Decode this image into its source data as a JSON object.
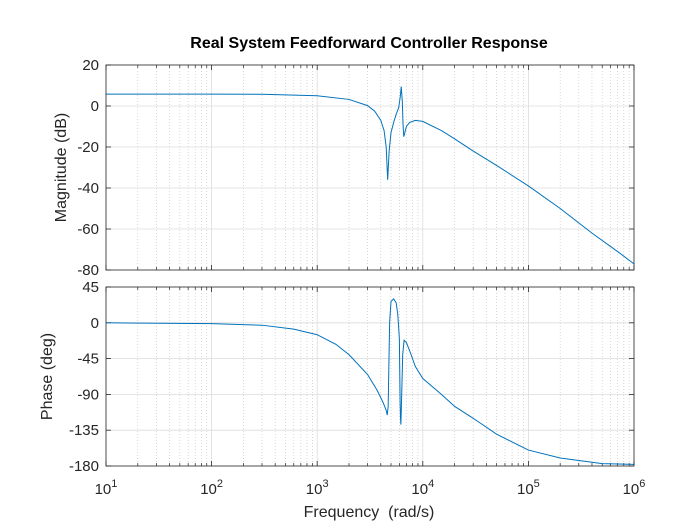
{
  "chart_data": {
    "type": "line",
    "title": "Real System Feedforward Controller Response",
    "xlabel": "Frequency  (rad/s)",
    "x_scale": "log",
    "xlim": [
      10,
      1000000
    ],
    "x_ticks": [
      {
        "value": 10,
        "base": "10",
        "exp": "1"
      },
      {
        "value": 100,
        "base": "10",
        "exp": "2"
      },
      {
        "value": 1000,
        "base": "10",
        "exp": "3"
      },
      {
        "value": 10000,
        "base": "10",
        "exp": "4"
      },
      {
        "value": 100000,
        "base": "10",
        "exp": "5"
      },
      {
        "value": 1000000,
        "base": "10",
        "exp": "6"
      }
    ],
    "grid": true,
    "line_color": "#0072BD",
    "panels": [
      {
        "id": "magnitude",
        "ylabel": "Magnitude (dB)",
        "ylim": [
          -80,
          20
        ],
        "yticks": [
          20,
          0,
          -20,
          -40,
          -60,
          -80
        ],
        "x": [
          10,
          100,
          300,
          1000,
          2000,
          3000,
          3500,
          4000,
          4300,
          4500,
          4650,
          4800,
          5000,
          5300,
          5600,
          5900,
          6100,
          6250,
          6400,
          6500,
          6600,
          7000,
          7500,
          8500,
          10000,
          15000,
          20000,
          30000,
          50000,
          100000,
          200000,
          400000,
          700000,
          1000000
        ],
        "y": [
          5.8,
          5.8,
          5.7,
          5.0,
          3.2,
          0.2,
          -2.5,
          -7.0,
          -12.0,
          -20.0,
          -36.0,
          -22.0,
          -13.0,
          -8.0,
          -4.0,
          -1.0,
          4.0,
          9.5,
          2.0,
          -9.0,
          -15.0,
          -10.0,
          -8.0,
          -7.0,
          -7.5,
          -12.0,
          -16.0,
          -22.0,
          -29.0,
          -39.0,
          -50.0,
          -62.0,
          -71.0,
          -77.0
        ]
      },
      {
        "id": "phase",
        "ylabel": "Phase (deg)",
        "ylim": [
          -180,
          45
        ],
        "yticks": [
          45,
          0,
          -45,
          -90,
          -135,
          -180
        ],
        "x": [
          10,
          100,
          300,
          600,
          1000,
          1500,
          2000,
          3000,
          3700,
          4200,
          4500,
          4600,
          4700,
          4850,
          5000,
          5300,
          5600,
          5800,
          6000,
          6100,
          6150,
          6200,
          6300,
          6450,
          6650,
          7000,
          7500,
          8500,
          10000,
          15000,
          20000,
          30000,
          50000,
          100000,
          200000,
          500000,
          1000000
        ],
        "y": [
          0,
          -1,
          -3,
          -8,
          -15,
          -27,
          -40,
          -65,
          -85,
          -100,
          -110,
          -116,
          -105,
          0,
          27,
          30,
          25,
          10,
          -20,
          -100,
          -120,
          -128,
          -95,
          -40,
          -22,
          -25,
          -35,
          -55,
          -70,
          -90,
          -105,
          -120,
          -140,
          -160,
          -170,
          -177,
          -178
        ]
      }
    ]
  }
}
